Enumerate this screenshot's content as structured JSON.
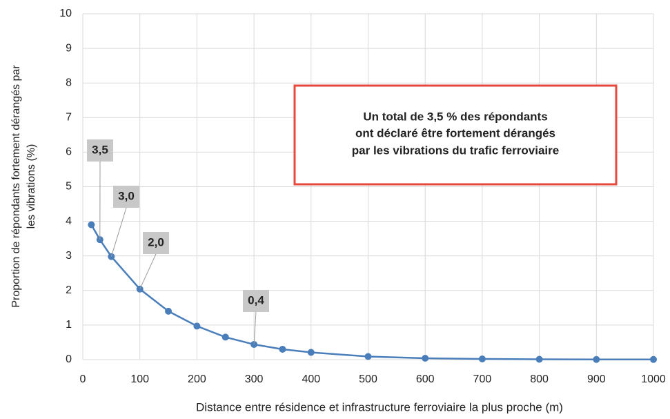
{
  "chart_data": {
    "type": "line",
    "xlabel": "Distance entre résidence et infrastructure ferroviaire la plus proche (m)",
    "ylabel": [
      "Proportion de répondants fortement dérangés par",
      "les vibrations (%)"
    ],
    "annotation": [
      "Un total de 3,5 % des répondants",
      "ont déclaré être fortement dérangés",
      "par les vibrations du trafic ferroviaire"
    ],
    "x": [
      15,
      30,
      50,
      100,
      150,
      200,
      250,
      300,
      350,
      400,
      500,
      600,
      700,
      800,
      900,
      1000
    ],
    "series": [
      {
        "name": "Proportion",
        "color": "#4a7ebb",
        "values": [
          3.9,
          3.47,
          2.98,
          2.04,
          1.4,
          0.97,
          0.65,
          0.44,
          0.3,
          0.21,
          0.09,
          0.04,
          0.02,
          0.01,
          0.005,
          0.005
        ],
        "value_labels": [
          null,
          "3,5",
          "3,0",
          "2,0",
          null,
          null,
          null,
          "0,4",
          null,
          null,
          null,
          null,
          null,
          null,
          null,
          null
        ]
      }
    ],
    "xlim": [
      0,
      1000
    ],
    "xticks": [
      0,
      100,
      200,
      300,
      400,
      500,
      600,
      700,
      800,
      900,
      1000
    ],
    "ylim": [
      0,
      10
    ],
    "yticks": [
      0,
      1,
      2,
      3,
      4,
      5,
      6,
      7,
      8,
      9,
      10
    ],
    "grid": true
  }
}
